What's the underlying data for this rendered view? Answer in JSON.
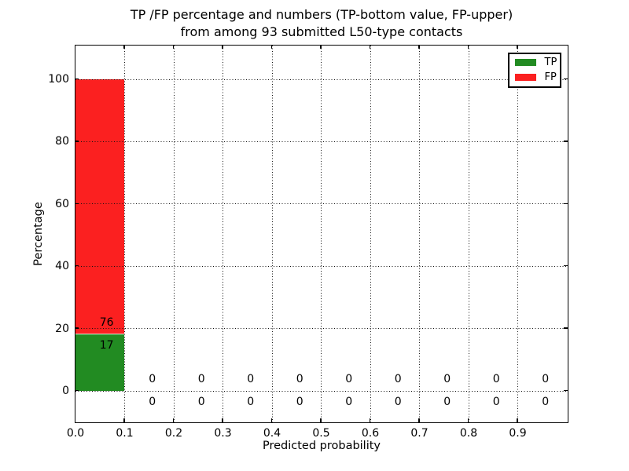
{
  "title": {
    "line1": "TP /FP percentage and numbers (TP-bottom value, FP-upper)",
    "line2": "from among 93 submitted L50-type contacts"
  },
  "axes": {
    "xlabel": "Predicted probability",
    "ylabel": "Percentage",
    "x_ticks": [
      {
        "v": 0.0,
        "label": "0.0"
      },
      {
        "v": 0.1,
        "label": "0.1"
      },
      {
        "v": 0.2,
        "label": "0.2"
      },
      {
        "v": 0.3,
        "label": "0.3"
      },
      {
        "v": 0.4,
        "label": "0.4"
      },
      {
        "v": 0.5,
        "label": "0.5"
      },
      {
        "v": 0.6,
        "label": "0.6"
      },
      {
        "v": 0.7,
        "label": "0.7"
      },
      {
        "v": 0.8,
        "label": "0.8"
      },
      {
        "v": 0.9,
        "label": "0.9"
      }
    ],
    "y_ticks": [
      {
        "v": 0,
        "label": "0"
      },
      {
        "v": 20,
        "label": "20"
      },
      {
        "v": 40,
        "label": "40"
      },
      {
        "v": 60,
        "label": "60"
      },
      {
        "v": 80,
        "label": "80"
      },
      {
        "v": 100,
        "label": "100"
      }
    ],
    "xlim": [
      0.0,
      1.0
    ],
    "ylim": [
      -10,
      111
    ],
    "grid": "dotted"
  },
  "legend": {
    "position": "upper right",
    "items": [
      {
        "label": "TP",
        "color": "#228B22"
      },
      {
        "label": "FP",
        "color": "#FB2020"
      }
    ]
  },
  "colors": {
    "tp": "#228B22",
    "fp": "#FB2020",
    "grid": "#000000",
    "text": "#000000",
    "background": "#FFFFFF"
  },
  "chart_data": {
    "type": "bar",
    "stacked": true,
    "title": "TP /FP percentage and numbers (TP-bottom value, FP-upper)\nfrom among 93 submitted L50-type contacts",
    "xlabel": "Predicted probability",
    "ylabel": "Percentage",
    "total_contacts": 93,
    "bin_width": 0.1,
    "bin_centers": [
      0.05,
      0.15,
      0.25,
      0.35,
      0.45,
      0.55,
      0.65,
      0.75,
      0.85,
      0.95
    ],
    "series": [
      {
        "name": "TP",
        "color": "#228B22",
        "counts": [
          17,
          0,
          0,
          0,
          0,
          0,
          0,
          0,
          0,
          0
        ],
        "percent": [
          18.28,
          0,
          0,
          0,
          0,
          0,
          0,
          0,
          0,
          0
        ]
      },
      {
        "name": "FP",
        "color": "#FB2020",
        "counts": [
          76,
          0,
          0,
          0,
          0,
          0,
          0,
          0,
          0,
          0
        ],
        "percent": [
          81.72,
          0,
          0,
          0,
          0,
          0,
          0,
          0,
          0,
          0
        ]
      }
    ],
    "xlim": [
      0.0,
      1.0
    ],
    "ylim": [
      -10,
      111
    ],
    "grid": true,
    "legend_position": "upper right"
  }
}
